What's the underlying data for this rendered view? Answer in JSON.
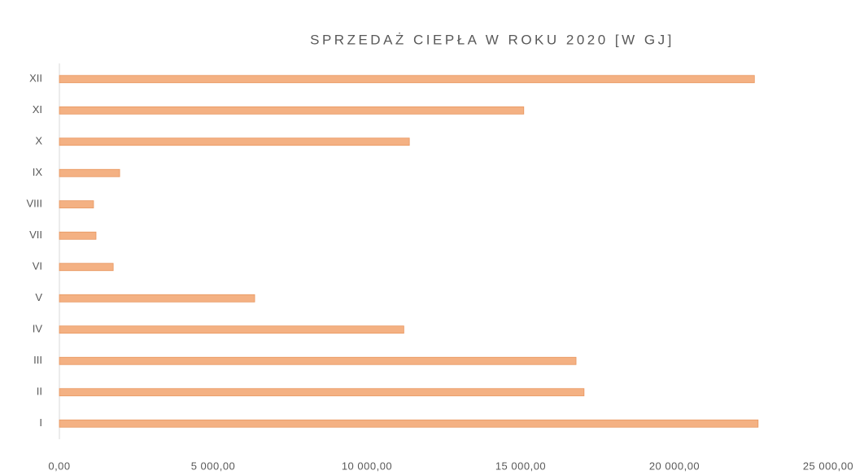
{
  "chart_data": {
    "type": "hbar",
    "title": "SPRZEDAŻ CIEPŁA W ROKU 2020 [W GJ]",
    "categories": [
      "I",
      "II",
      "III",
      "IV",
      "V",
      "VI",
      "VII",
      "VIII",
      "IX",
      "X",
      "XI",
      "XII"
    ],
    "values": [
      22720,
      17060,
      16800,
      11200,
      6350,
      1750,
      1190,
      1110,
      1960,
      11380,
      15100,
      22600
    ],
    "color": "#f4b183",
    "xlim": [
      0,
      25000
    ],
    "xticks": [
      {
        "value": 0,
        "label": "0,00"
      },
      {
        "value": 5000,
        "label": "5 000,00"
      },
      {
        "value": 10000,
        "label": "10 000,00"
      },
      {
        "value": 15000,
        "label": "15 000,00"
      },
      {
        "value": 20000,
        "label": "20 000,00"
      },
      {
        "value": 25000,
        "label": "25 000,00"
      }
    ],
    "grid": false
  }
}
